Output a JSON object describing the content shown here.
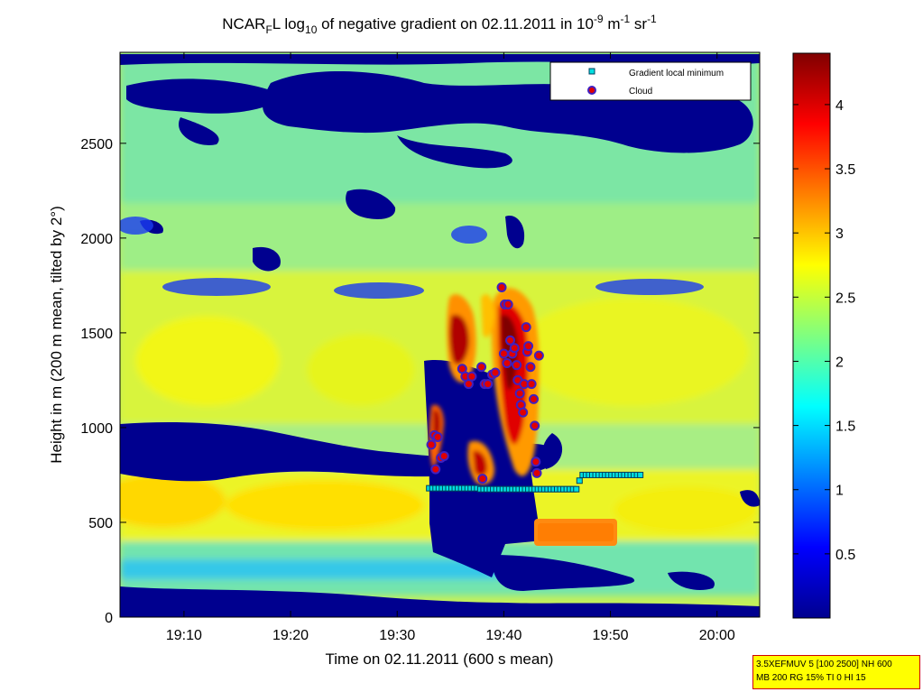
{
  "chart_data": {
    "type": "heatmap",
    "title": {
      "p1": "NCAR",
      "p1_sub": "F",
      "p2": "L log",
      "p2_sub": "10",
      "p3": " of negative gradient on 02.11.2011 in 10",
      "p3_sup": "-9",
      "p4": " m",
      "p4_sup": "-1",
      "p5": " sr",
      "p5_sup": "-1"
    },
    "xlabel": "Time on 02.11.2011 (600 s mean)",
    "ylabel": "Height in m (200 m mean, tilted by 2°)",
    "x_ticks": [
      "19:10",
      "19:20",
      "19:30",
      "19:40",
      "19:50",
      "20:00"
    ],
    "y_ticks": [
      "0",
      "500",
      "1000",
      "1500",
      "2000",
      "2500"
    ],
    "xlim_minutes_after_19h": [
      4,
      64
    ],
    "ylim": [
      0,
      2980
    ],
    "colorbar": {
      "ticks": [
        "0.5",
        "1",
        "1.5",
        "2",
        "2.5",
        "3",
        "3.5",
        "4"
      ],
      "range": [
        0,
        4.4
      ],
      "colormap": "jet"
    },
    "legend": {
      "placement": "top-right",
      "entries": [
        "Gradient local minimum",
        "Cloud"
      ]
    },
    "series": [
      {
        "name": "Gradient local minimum",
        "points": [
          [
            33.0,
            680
          ],
          [
            33.3,
            680
          ],
          [
            33.6,
            680
          ],
          [
            33.9,
            680
          ],
          [
            34.2,
            680
          ],
          [
            34.5,
            680
          ],
          [
            34.8,
            680
          ],
          [
            35.1,
            680
          ],
          [
            35.4,
            680
          ],
          [
            35.7,
            680
          ],
          [
            36.0,
            680
          ],
          [
            36.3,
            680
          ],
          [
            36.6,
            680
          ],
          [
            36.9,
            680
          ],
          [
            37.2,
            680
          ],
          [
            37.5,
            680
          ],
          [
            37.8,
            675
          ],
          [
            38.1,
            675
          ],
          [
            38.4,
            675
          ],
          [
            38.7,
            675
          ],
          [
            39.0,
            675
          ],
          [
            39.3,
            675
          ],
          [
            39.6,
            675
          ],
          [
            39.9,
            675
          ],
          [
            40.2,
            675
          ],
          [
            40.5,
            675
          ],
          [
            40.8,
            675
          ],
          [
            41.1,
            675
          ],
          [
            41.4,
            675
          ],
          [
            41.7,
            675
          ],
          [
            42.0,
            675
          ],
          [
            42.3,
            675
          ],
          [
            42.6,
            675
          ],
          [
            42.9,
            675
          ],
          [
            43.2,
            675
          ],
          [
            43.5,
            675
          ],
          [
            43.8,
            675
          ],
          [
            44.1,
            675
          ],
          [
            44.4,
            675
          ],
          [
            44.7,
            675
          ],
          [
            45.0,
            675
          ],
          [
            45.3,
            675
          ],
          [
            45.6,
            675
          ],
          [
            45.9,
            675
          ],
          [
            46.2,
            675
          ],
          [
            46.5,
            675
          ],
          [
            46.8,
            675
          ],
          [
            47.1,
            720
          ],
          [
            47.4,
            750
          ],
          [
            47.7,
            750
          ],
          [
            48.0,
            750
          ],
          [
            48.3,
            750
          ],
          [
            48.6,
            750
          ],
          [
            48.9,
            750
          ],
          [
            49.2,
            750
          ],
          [
            49.5,
            750
          ],
          [
            49.8,
            750
          ],
          [
            50.1,
            750
          ],
          [
            50.4,
            750
          ],
          [
            50.7,
            750
          ],
          [
            51.0,
            750
          ],
          [
            51.3,
            750
          ],
          [
            51.6,
            750
          ],
          [
            51.9,
            750
          ],
          [
            52.2,
            750
          ],
          [
            52.5,
            750
          ],
          [
            52.8,
            750
          ]
        ]
      },
      {
        "name": "Cloud",
        "points": [
          [
            33.2,
            910
          ],
          [
            33.5,
            960
          ],
          [
            33.8,
            950
          ],
          [
            34.1,
            840
          ],
          [
            34.4,
            850
          ],
          [
            33.6,
            780
          ],
          [
            36.1,
            1310
          ],
          [
            36.4,
            1270
          ],
          [
            36.7,
            1230
          ],
          [
            37.0,
            1270
          ],
          [
            37.9,
            1320
          ],
          [
            38.2,
            1230
          ],
          [
            38.5,
            1230
          ],
          [
            38.9,
            1280
          ],
          [
            39.2,
            1290
          ],
          [
            38.0,
            730
          ],
          [
            39.8,
            1740
          ],
          [
            40.1,
            1650
          ],
          [
            40.4,
            1650
          ],
          [
            40.0,
            1390
          ],
          [
            40.3,
            1340
          ],
          [
            40.6,
            1460
          ],
          [
            40.8,
            1390
          ],
          [
            41.0,
            1420
          ],
          [
            41.2,
            1330
          ],
          [
            41.3,
            1250
          ],
          [
            41.5,
            1180
          ],
          [
            41.6,
            1120
          ],
          [
            41.8,
            1080
          ],
          [
            41.9,
            1230
          ],
          [
            42.1,
            1530
          ],
          [
            42.2,
            1400
          ],
          [
            42.3,
            1430
          ],
          [
            42.5,
            1320
          ],
          [
            42.6,
            1230
          ],
          [
            42.8,
            1150
          ],
          [
            42.9,
            1010
          ],
          [
            43.0,
            820
          ],
          [
            43.1,
            760
          ],
          [
            43.3,
            1380
          ]
        ]
      }
    ]
  },
  "info_box": {
    "line1": "3.5XEFMUV 5 [100 2500] NH 600",
    "line2": "MB 200 RG 15% TI 0 HI 15"
  },
  "colors": {
    "gradient_marker_fill": "#00e0e0",
    "gradient_marker_edge": "#004060",
    "cloud_marker_fill": "#e00000",
    "cloud_marker_edge": "#4020c0",
    "info_box_bg": "#ffff00",
    "info_box_border": "#d00000"
  }
}
